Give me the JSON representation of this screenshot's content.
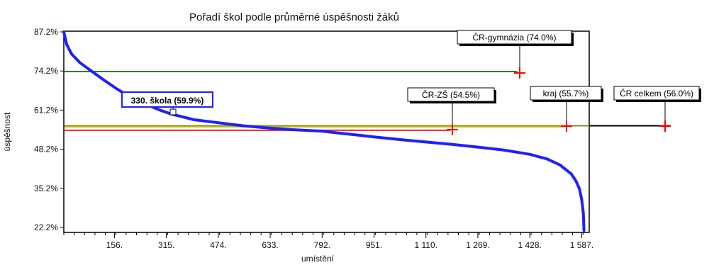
{
  "chart_data": {
    "type": "line",
    "title": "Pořadí škol podle průměrné úspěšnosti žáků",
    "xlabel": "umístění",
    "ylabel": "úspěšnost",
    "xlim": [
      1,
      1610
    ],
    "ylim": [
      21.2,
      87.2
    ],
    "x_ticks": [
      {
        "value": 156,
        "label": "156."
      },
      {
        "value": 315,
        "label": "315."
      },
      {
        "value": 474,
        "label": "474."
      },
      {
        "value": 633,
        "label": "633."
      },
      {
        "value": 792,
        "label": "792."
      },
      {
        "value": 951,
        "label": "951."
      },
      {
        "value": 1110,
        "label": "1 110."
      },
      {
        "value": 1269,
        "label": "1 269."
      },
      {
        "value": 1428,
        "label": "1 428."
      },
      {
        "value": 1587,
        "label": "1 587."
      }
    ],
    "y_ticks": [
      {
        "value": 22.2,
        "label": "22.2%"
      },
      {
        "value": 35.2,
        "label": "35.2%"
      },
      {
        "value": 48.2,
        "label": "48.2%"
      },
      {
        "value": 61.2,
        "label": "61.2%"
      },
      {
        "value": 74.2,
        "label": "74.2%"
      },
      {
        "value": 87.2,
        "label": "87.2%"
      }
    ],
    "grid": false,
    "series": [
      {
        "color": "#1f1fff",
        "points": [
          [
            1,
            87.2
          ],
          [
            10,
            83.0
          ],
          [
            25,
            79.8
          ],
          [
            50,
            77.0
          ],
          [
            80,
            74.6
          ],
          [
            120,
            71.5
          ],
          [
            160,
            68.5
          ],
          [
            200,
            65.8
          ],
          [
            250,
            63.2
          ],
          [
            300,
            61.0
          ],
          [
            330,
            59.9
          ],
          [
            400,
            58.0
          ],
          [
            474,
            57.0
          ],
          [
            550,
            56.0
          ],
          [
            633,
            55.2
          ],
          [
            700,
            54.7
          ],
          [
            792,
            54.2
          ],
          [
            850,
            53.5
          ],
          [
            951,
            52.3
          ],
          [
            1050,
            51.2
          ],
          [
            1110,
            50.6
          ],
          [
            1200,
            49.7
          ],
          [
            1269,
            48.9
          ],
          [
            1350,
            47.9
          ],
          [
            1428,
            46.5
          ],
          [
            1480,
            45.0
          ],
          [
            1520,
            43.0
          ],
          [
            1555,
            40.0
          ],
          [
            1570,
            37.5
          ],
          [
            1580,
            35.0
          ],
          [
            1587,
            31.5
          ],
          [
            1592,
            27.0
          ],
          [
            1594,
            21.2
          ]
        ]
      }
    ],
    "reference_lines": [
      {
        "name": "ČR-gymnázia (74.0%)",
        "value": 74.0,
        "x_end": 1390,
        "color": "#1e8a1e"
      },
      {
        "name": "ČR celkem (56.0%)",
        "value": 56.0,
        "x_end": 1610,
        "color": "#8a8a2a"
      },
      {
        "name": "kraj (55.7%)",
        "value": 55.7,
        "x_end": 1530,
        "color": "#b8b800"
      },
      {
        "name": "ČR-ZŠ (54.5%)",
        "value": 54.5,
        "x_end": 1185,
        "color": "#ff2020"
      }
    ],
    "annotations": [
      {
        "label": "ČR-gymnázia (74.0%)",
        "x": 1390,
        "y": 74.0,
        "color": "#000000"
      },
      {
        "label": "kraj (55.7%)",
        "x": 1530,
        "y": 56.0,
        "color": "#000000"
      },
      {
        "label": "ČR-ZŠ (54.5%)",
        "x": 1185,
        "y": 54.5,
        "color": "#000000"
      },
      {
        "label": "ČR celkem (56.0%)",
        "x": 1810,
        "y": 56.0,
        "color": "#000000"
      },
      {
        "label": "330. škola (59.9%)",
        "x": 330,
        "y": 59.9,
        "color": "#1f1fff"
      }
    ]
  }
}
